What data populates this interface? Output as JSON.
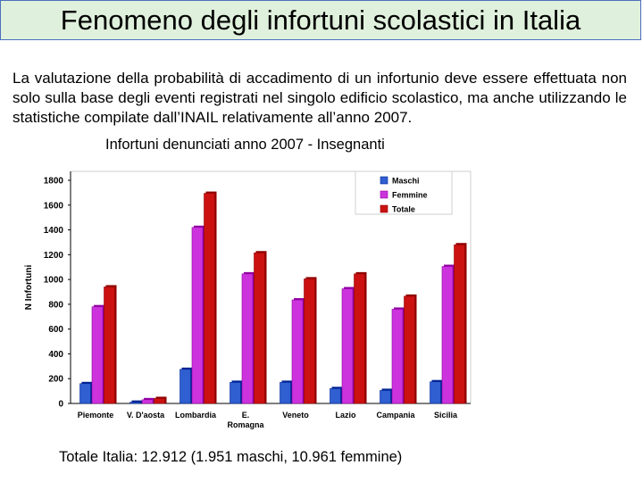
{
  "slide": {
    "title": "Fenomeno degli infortuni scolastici in Italia",
    "intro": "La valutazione della probabilità di accadimento di un infortunio deve essere effettuata non solo sulla base degli eventi registrati nel singolo edificio scolastico, ma anche utilizzando le statistiche compilate dall’INAIL relativamente all’anno 2007.",
    "chart_caption": "Infortuni denunciati anno 2007 - Insegnanti",
    "footer": "Totale Italia: 12.912 (1.951 maschi, 10.961 femmine)"
  },
  "chart_data": {
    "type": "bar",
    "title": "Infortuni denunciati anno 2007 - Insegnanti",
    "xlabel": "",
    "ylabel": "N Infortuni",
    "ylim": [
      0,
      1800
    ],
    "yticks": [
      0,
      200,
      400,
      600,
      800,
      1000,
      1200,
      1400,
      1600,
      1800
    ],
    "categories": [
      [
        "Piemonte"
      ],
      [
        "V. D'aosta"
      ],
      [
        "Lombardia"
      ],
      [
        "E.",
        "Romagna"
      ],
      [
        "Veneto"
      ],
      [
        "Lazio"
      ],
      [
        "Campania"
      ],
      [
        "Sicilia"
      ]
    ],
    "series": [
      {
        "name": "Maschi",
        "color": "#2f5fd0",
        "values": [
          160,
          10,
          275,
          170,
          170,
          120,
          105,
          175
        ]
      },
      {
        "name": "Femmine",
        "color": "#cc33dd",
        "values": [
          780,
          30,
          1420,
          1045,
          835,
          925,
          760,
          1105
        ]
      },
      {
        "name": "Totale",
        "color": "#cc1111",
        "values": [
          940,
          40,
          1695,
          1215,
          1005,
          1045,
          865,
          1280
        ]
      }
    ],
    "grid": false,
    "legend_position": "top-right"
  }
}
